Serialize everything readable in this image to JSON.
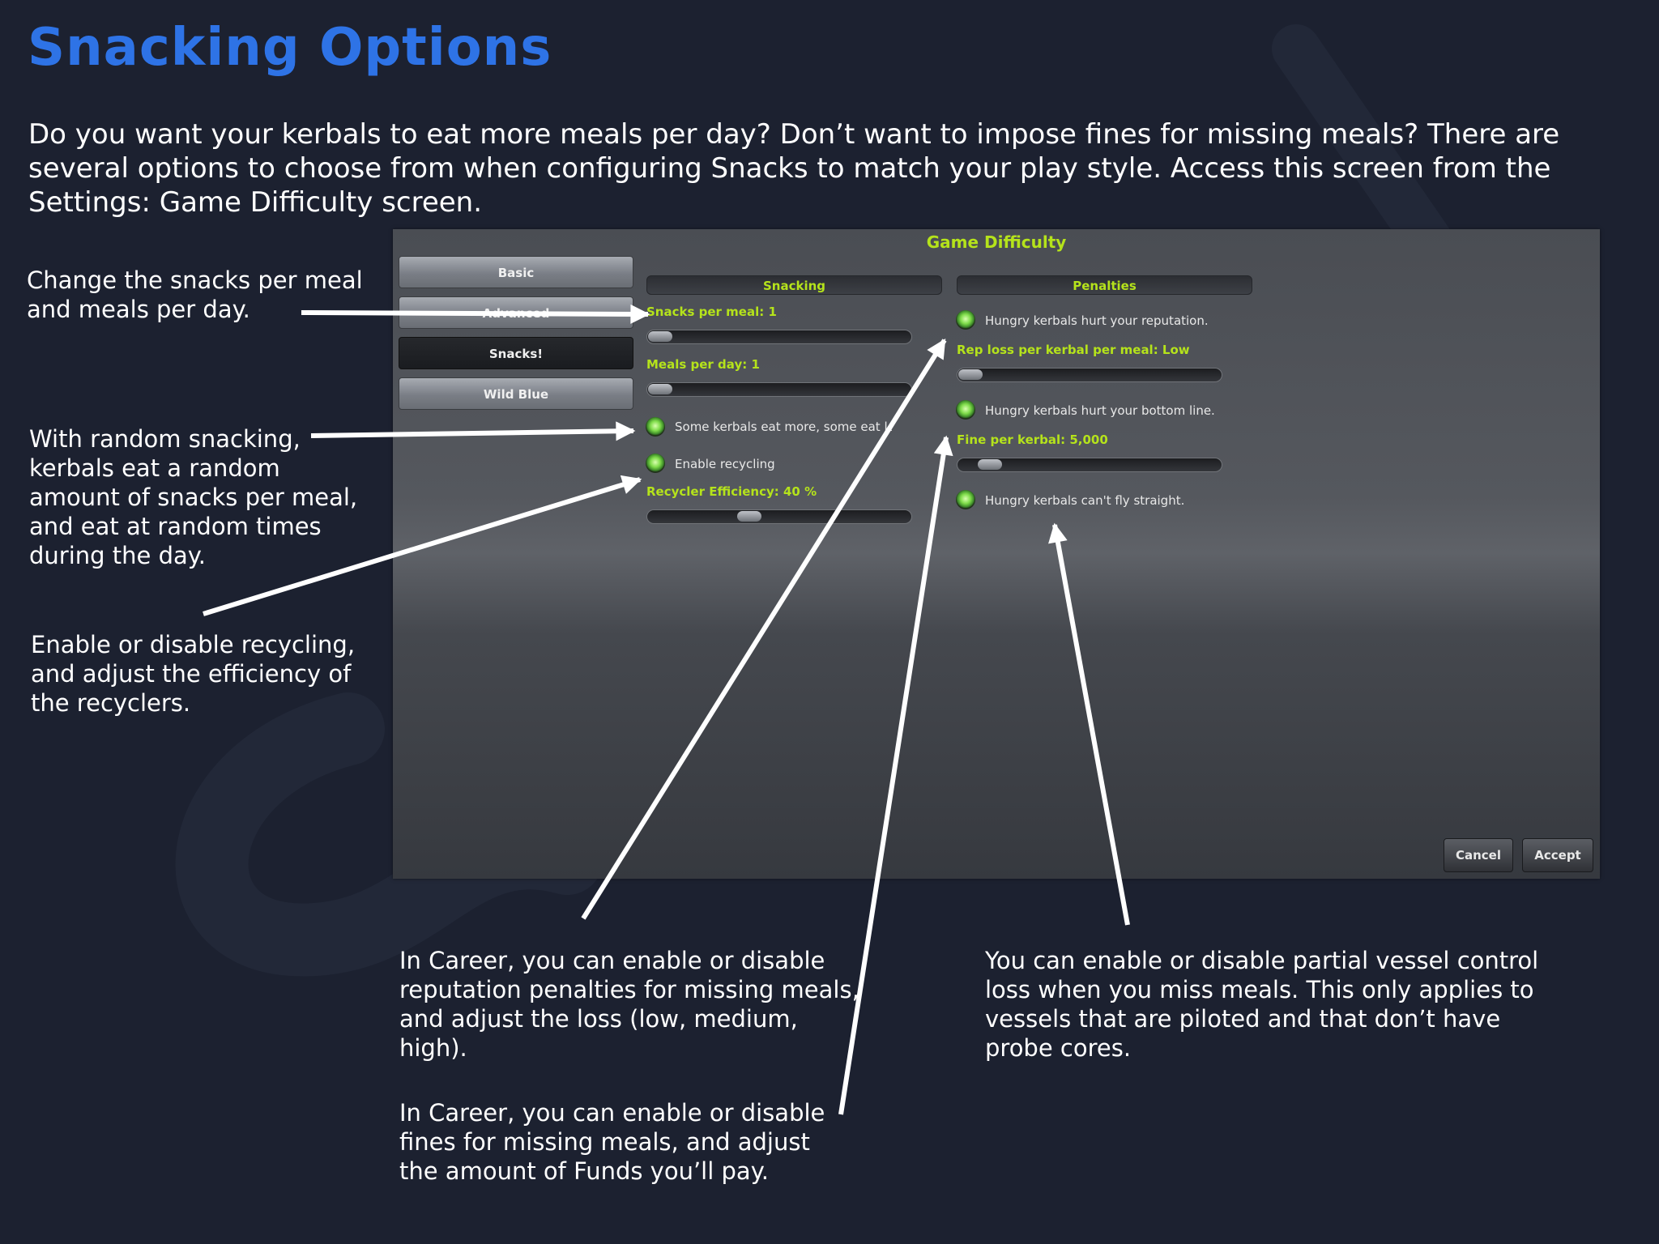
{
  "page": {
    "title": "Snacking Options",
    "intro": "Do you want your kerbals to eat more meals per day? Don’t want to impose fines for missing meals? There are several options to choose from when configuring Snacks to match your play style. Access this screen from the Settings: Game Difficulty screen."
  },
  "annotations": {
    "meals": "Change the snacks per meal and meals per day.",
    "random": "With random snacking, kerbals eat a random amount of snacks per meal, and eat at random times during the day.",
    "recycling": "Enable or disable recycling, and adjust the efficiency of the recyclers.",
    "reputation": "In Career, you can enable or disable reputation penalties for missing meals, and adjust the loss (low, medium, high).",
    "fines": "In Career, you can enable or disable fines for missing meals, and adjust the amount of Funds you’ll pay.",
    "control": "You can enable or disable partial vessel control loss when you miss meals. This only applies to vessels that are piloted and that don’t have probe cores."
  },
  "game_window": {
    "title": "Game Difficulty",
    "tabs": [
      "Basic",
      "Advanced",
      "Snacks!",
      "Wild Blue"
    ],
    "active_tab": "Snacks!",
    "snacking": {
      "header": "Snacking",
      "snacks_per_meal_label": "Snacks per meal: 1",
      "snacks_per_meal_value": 1,
      "meals_per_day_label": "Meals per day: 1",
      "meals_per_day_value": 1,
      "random_toggle_label": "Some kerbals eat more, some eat less",
      "recycling_toggle_label": "Enable recycling",
      "recycler_efficiency_label": "Recycler Efficiency: 40 %",
      "recycler_efficiency_fraction": 0.4
    },
    "penalties": {
      "header": "Penalties",
      "reputation_toggle_label": "Hungry kerbals hurt your reputation.",
      "rep_loss_label": "Rep loss per kerbal per meal: Low",
      "fine_toggle_label": "Hungry kerbals hurt your bottom line.",
      "fine_label": "Fine per kerbal: 5,000",
      "fine_fraction": 0.1,
      "control_toggle_label": "Hungry kerbals can't fly straight."
    },
    "buttons": {
      "cancel": "Cancel",
      "accept": "Accept"
    }
  },
  "colors": {
    "background": "#1c2130",
    "title_blue": "#2e73e6",
    "ui_green": "#b5e31b",
    "toggle_green": "#7fdc4a"
  }
}
